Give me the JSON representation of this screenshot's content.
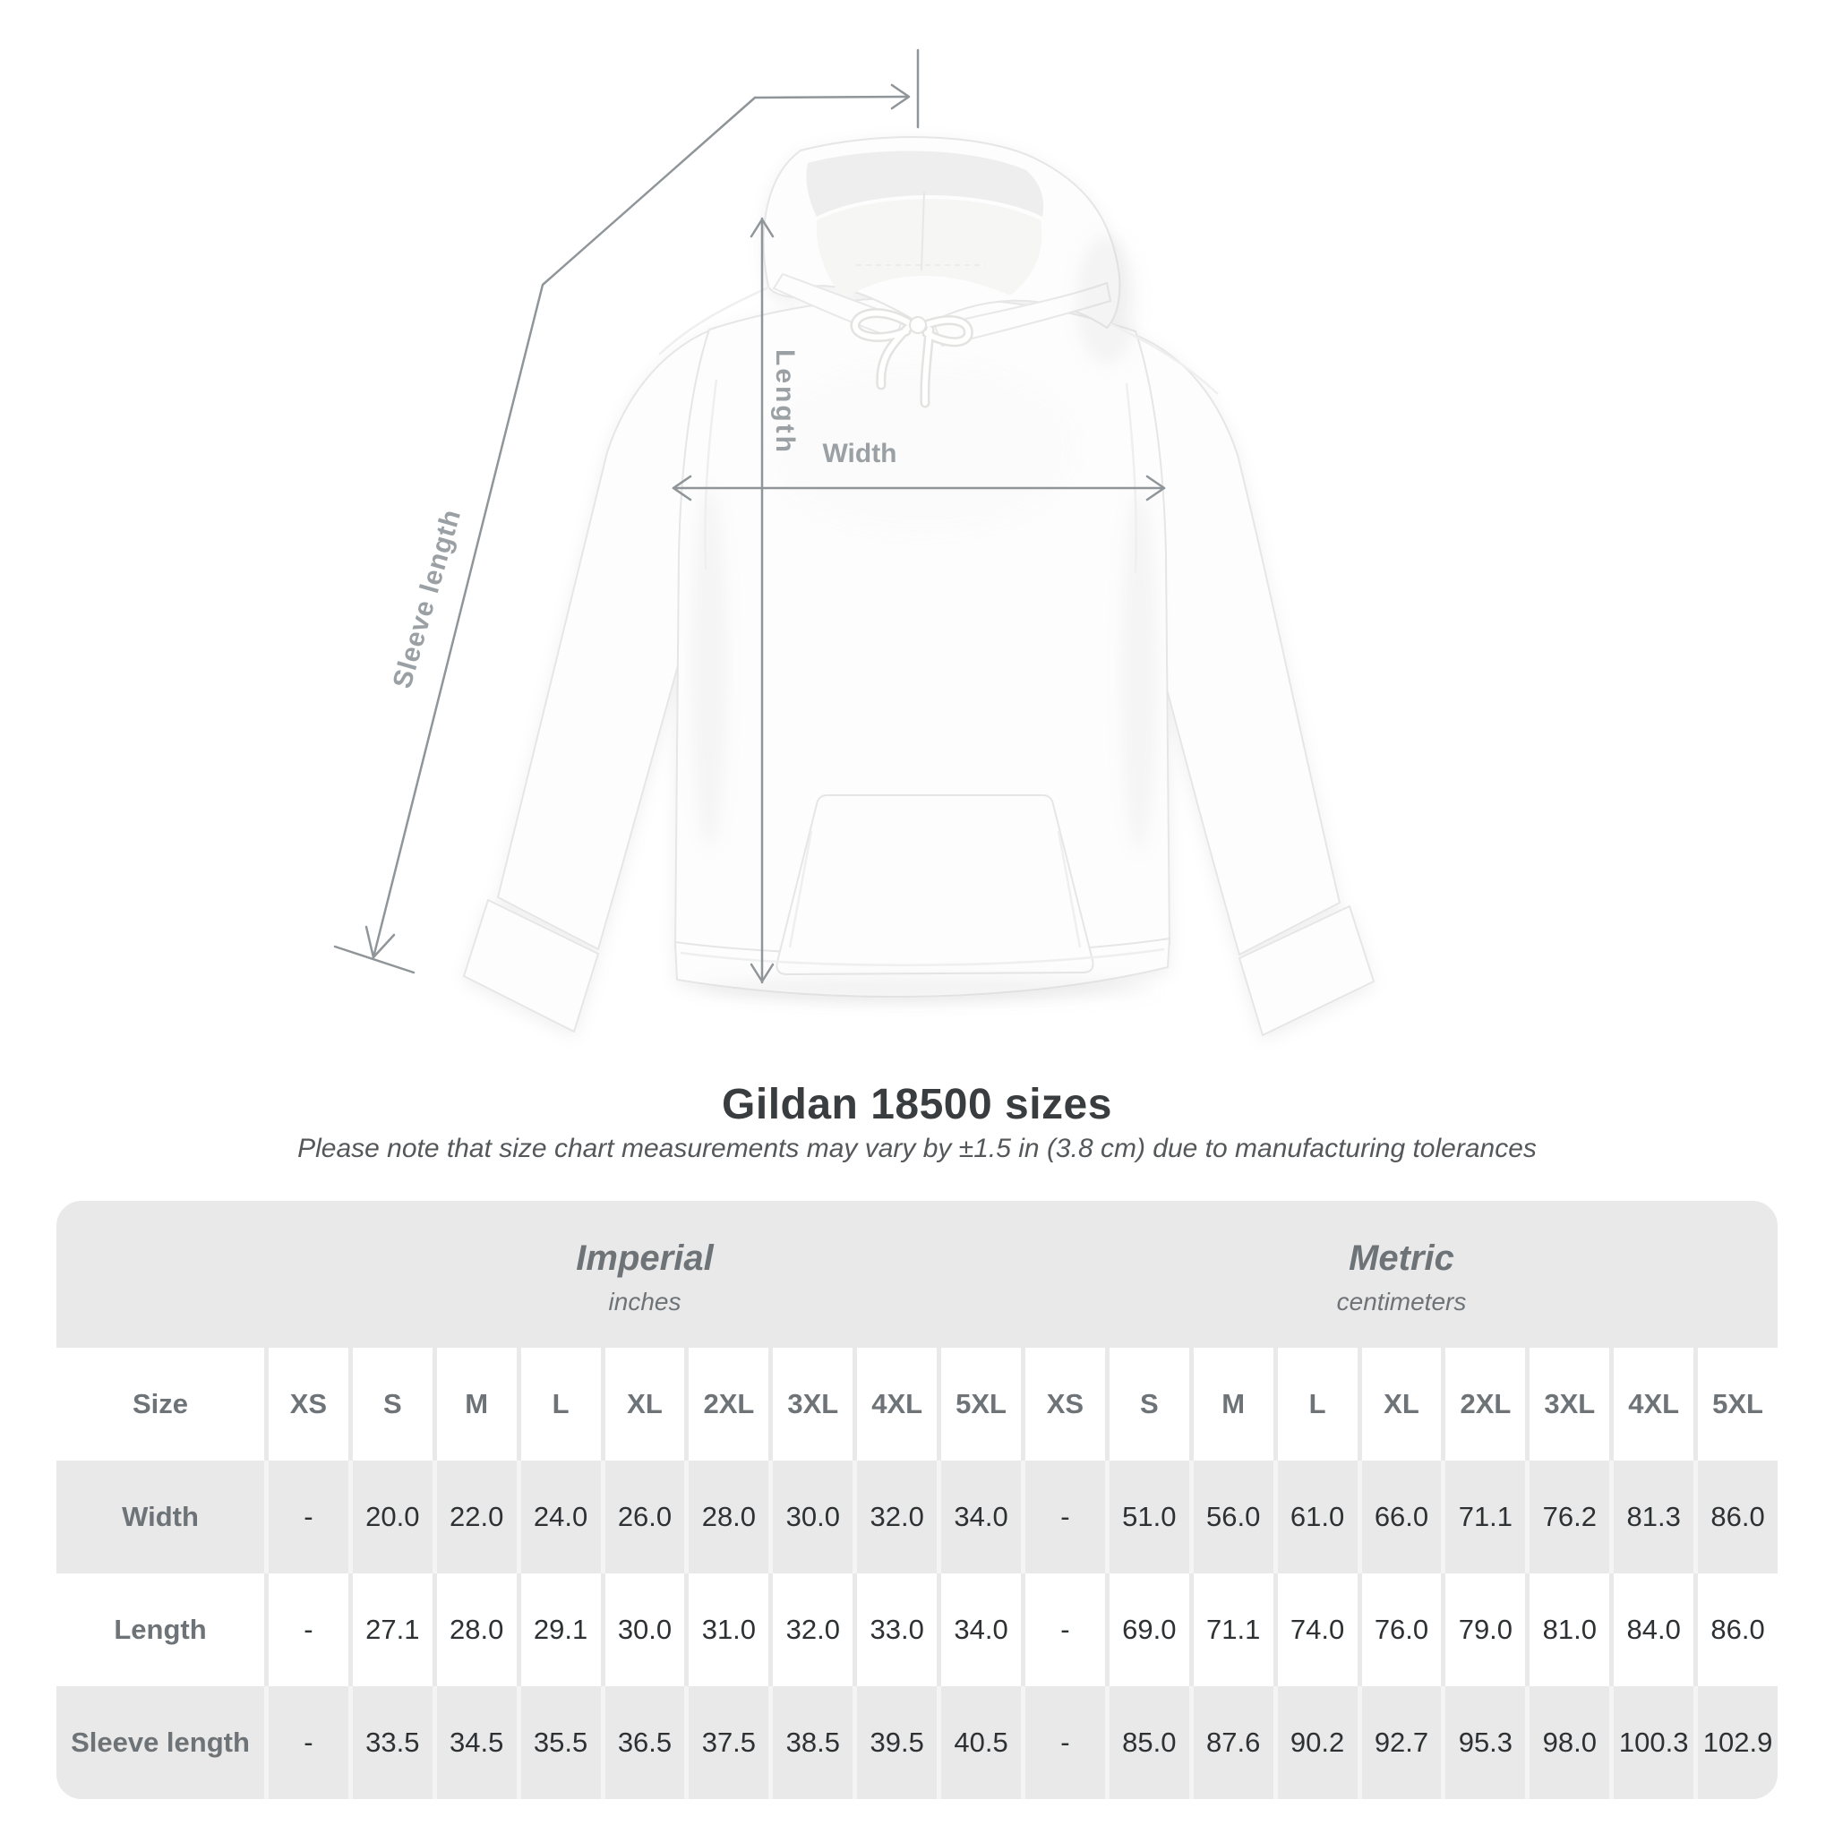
{
  "diagram": {
    "length_label": "Length",
    "width_label": "Width",
    "sleeve_label": "Sleeve length"
  },
  "title": "Gildan 18500 sizes",
  "subtitle": "Please note that size chart measurements may vary by ±1.5 in (3.8 cm) due to manufacturing tolerances",
  "table": {
    "size_header": "Size",
    "groups": [
      {
        "label": "Imperial",
        "sublabel": "inches"
      },
      {
        "label": "Metric",
        "sublabel": "centimeters"
      }
    ],
    "columns": [
      "XS",
      "S",
      "M",
      "L",
      "XL",
      "2XL",
      "3XL",
      "4XL",
      "5XL",
      "XS",
      "S",
      "M",
      "L",
      "XL",
      "2XL",
      "3XL",
      "4XL",
      "5XL"
    ],
    "rows": [
      {
        "label": "Width",
        "values": [
          "-",
          "20.0",
          "22.0",
          "24.0",
          "26.0",
          "28.0",
          "30.0",
          "32.0",
          "34.0",
          "-",
          "51.0",
          "56.0",
          "61.0",
          "66.0",
          "71.1",
          "76.2",
          "81.3",
          "86.0"
        ]
      },
      {
        "label": "Length",
        "values": [
          "-",
          "27.1",
          "28.0",
          "29.1",
          "30.0",
          "31.0",
          "32.0",
          "33.0",
          "34.0",
          "-",
          "69.0",
          "71.1",
          "74.0",
          "76.0",
          "79.0",
          "81.0",
          "84.0",
          "86.0"
        ]
      },
      {
        "label": "Sleeve length",
        "values": [
          "-",
          "33.5",
          "34.5",
          "35.5",
          "36.5",
          "37.5",
          "38.5",
          "39.5",
          "40.5",
          "-",
          "85.0",
          "87.6",
          "90.2",
          "92.7",
          "95.3",
          "98.0",
          "100.3",
          "102.9"
        ]
      }
    ]
  },
  "colors": {
    "annotation_line": "#8f9598",
    "annotation_label": "#9aa0a3",
    "table_band": "#e9e9e9",
    "title_text": "#3a3d3f",
    "value_text": "#2e3133",
    "header_text": "#6d7377"
  }
}
